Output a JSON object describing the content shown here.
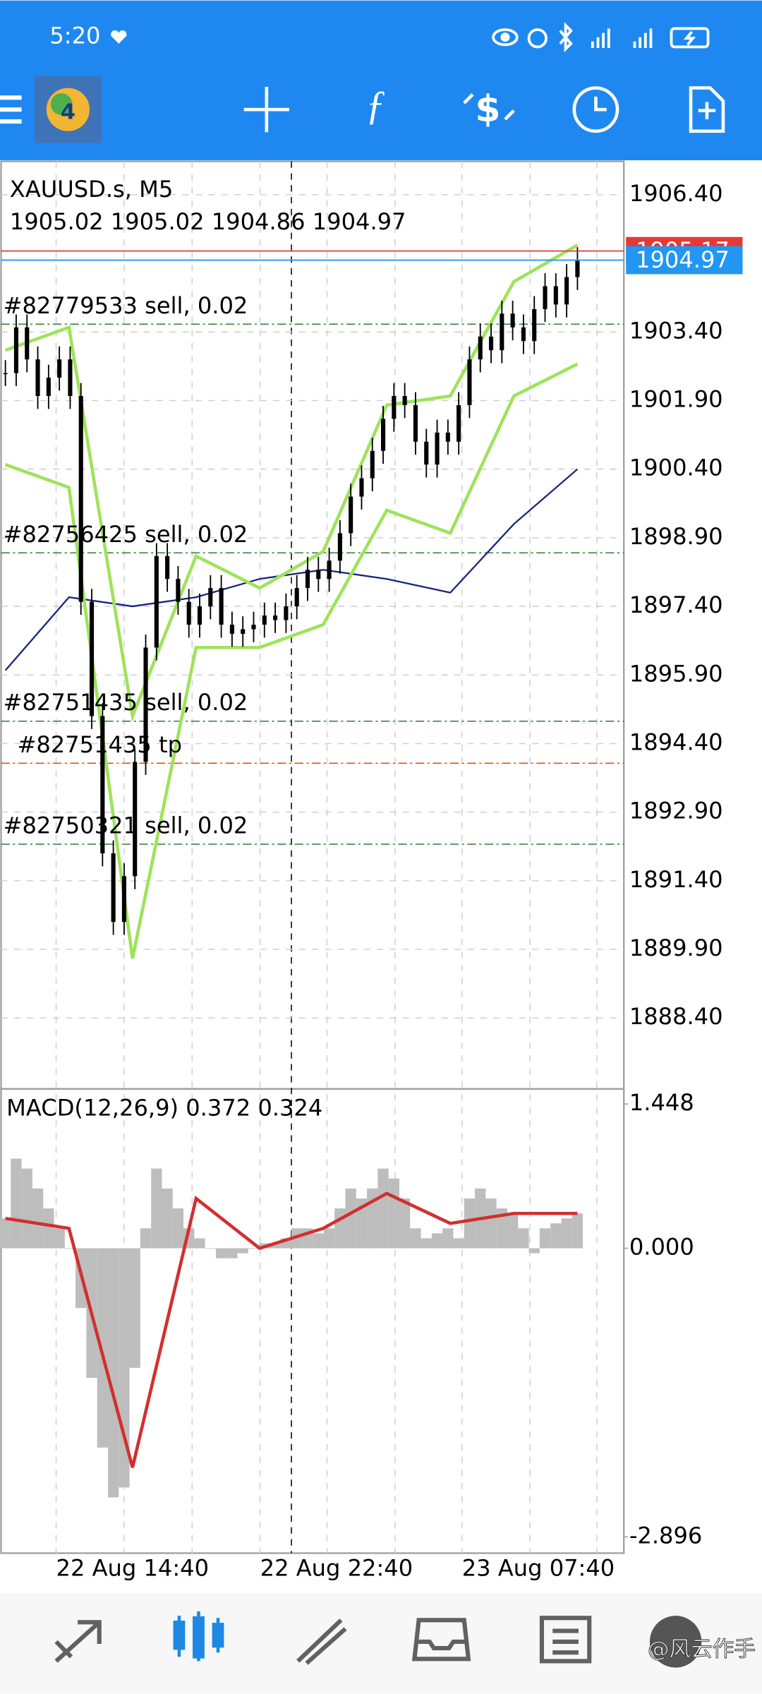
{
  "status_bar": {
    "time": "5:20"
  },
  "chart_data": {
    "type": "candlestick",
    "symbol": "XAUUSD.s, M5",
    "ohlc": "1905.02 1905.02 1904.86 1904.97",
    "ylim": [
      1886.85,
      1907.13
    ],
    "yticks": [
      {
        "value": 1906.4,
        "label": "1906.40"
      },
      {
        "value": 1903.4,
        "label": "1903.40"
      },
      {
        "value": 1901.9,
        "label": "1901.90"
      },
      {
        "value": 1900.4,
        "label": "1900.40"
      },
      {
        "value": 1898.9,
        "label": "1898.90"
      },
      {
        "value": 1897.4,
        "label": "1897.40"
      },
      {
        "value": 1895.9,
        "label": "1895.90"
      },
      {
        "value": 1894.4,
        "label": "1894.40"
      },
      {
        "value": 1892.9,
        "label": "1892.90"
      },
      {
        "value": 1891.4,
        "label": "1891.40"
      },
      {
        "value": 1889.9,
        "label": "1889.90"
      },
      {
        "value": 1888.4,
        "label": "1888.40"
      }
    ],
    "grid": true,
    "color": "#000000",
    "closes": [
      1902.5,
      1903.5,
      1902.8,
      1902.0,
      1902.4,
      1902.8,
      1902.0,
      1897.5,
      1895.0,
      1892.0,
      1890.5,
      1891.5,
      1894.0,
      1896.5,
      1898.5,
      1898.0,
      1897.5,
      1897.0,
      1897.4,
      1897.8,
      1897.0,
      1896.8,
      1896.9,
      1897.0,
      1897.2,
      1897.1,
      1897.4,
      1897.8,
      1898.2,
      1898.0,
      1898.4,
      1899.0,
      1899.8,
      1900.2,
      1900.8,
      1901.5,
      1902.0,
      1901.8,
      1901.0,
      1900.5,
      1901.2,
      1901.0,
      1901.8,
      1902.8,
      1903.3,
      1903.0,
      1903.8,
      1903.5,
      1903.2,
      1903.9,
      1904.4,
      1904.0,
      1904.6,
      1904.97
    ],
    "bid": 1904.97,
    "ask": 1905.17,
    "orders": [
      {
        "label": "#82779533 sell, 0.02",
        "level": 1903.57,
        "color": "#2e7d32"
      },
      {
        "label": "#82756425 sell, 0.02",
        "level": 1898.57,
        "color": "#2e7d32"
      },
      {
        "label": "#82751435 sell, 0.02",
        "level": 1894.89,
        "color": "#2e7d32"
      },
      {
        "label": "#82751435 tp",
        "level": 1893.97,
        "color": "#e65100"
      },
      {
        "label": "#82750321 sell, 0.02",
        "level": 1892.2,
        "color": "#2e7d32"
      }
    ],
    "lines": [
      {
        "values": [
          1896.0,
          1897.6,
          1897.4,
          1897.6,
          1898.0,
          1898.2,
          1898.0,
          1897.7,
          1899.2,
          1900.4
        ],
        "color": "#1a237e"
      },
      {
        "values": [
          1903.0,
          1903.5,
          1895.0,
          1898.5,
          1897.8,
          1898.6,
          1901.8,
          1902.0,
          1904.5,
          1905.3
        ],
        "color": "#9ee35a"
      },
      {
        "values": [
          1900.5,
          1900.0,
          1889.7,
          1896.5,
          1896.5,
          1897.0,
          1899.5,
          1899.0,
          1902.0,
          1902.7
        ],
        "color": "#9ee35a"
      }
    ],
    "xticks": [
      "22 Aug 14:40",
      "22 Aug 22:40",
      "23 Aug 07:40"
    ]
  },
  "macd": {
    "type": "bar",
    "title": "MACD(12,26,9) 0.372 0.324",
    "ylim": [
      -3.06,
      1.6
    ],
    "yticks": [
      1.448,
      {
        "value": 0,
        "label": "0.000"
      },
      -2.896
    ],
    "color": "#bdbdbd",
    "values": [
      0.3,
      0.9,
      0.8,
      0.6,
      0.4,
      0.2,
      0,
      -0.6,
      -1.3,
      -2.0,
      -2.5,
      -2.4,
      -1.2,
      0.2,
      0.8,
      0.6,
      0.4,
      0.2,
      0.1,
      0.0,
      -0.1,
      -0.1,
      -0.05,
      0.0,
      0.05,
      0.05,
      0.1,
      0.2,
      0.2,
      0.15,
      0.2,
      0.4,
      0.6,
      0.5,
      0.6,
      0.8,
      0.7,
      0.5,
      0.2,
      0.1,
      0.15,
      0.2,
      0.1,
      0.5,
      0.6,
      0.5,
      0.4,
      0.35,
      0.2,
      -0.05,
      0.2,
      0.25,
      0.3,
      0.35
    ],
    "signal": {
      "values": [
        0.3,
        0.2,
        -2.2,
        0.5,
        0.0,
        0.2,
        0.55,
        0.25,
        0.35,
        0.35
      ],
      "color": "#d32f2f"
    }
  },
  "watermark": "@风云作手"
}
